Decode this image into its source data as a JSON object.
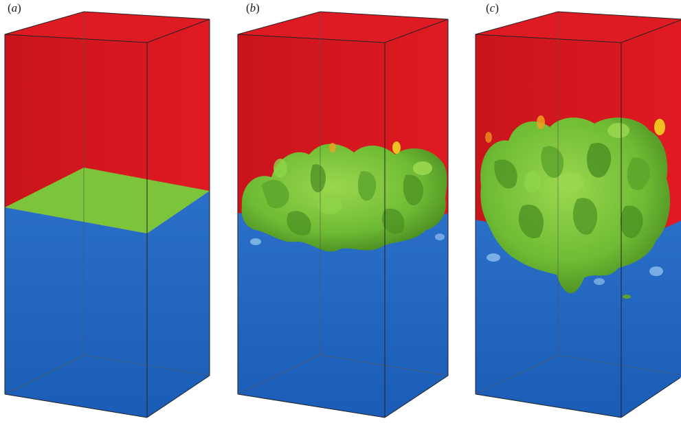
{
  "panels": [
    {
      "label": "a",
      "stage": "initial-flat-interface"
    },
    {
      "label": "b",
      "stage": "early-turbulent-mixing"
    },
    {
      "label": "c",
      "stage": "late-turbulent-mixing"
    }
  ],
  "colors": {
    "upper_fluid": "#d8161e",
    "upper_fluid_side": "#c8121a",
    "lower_fluid": "#1f64c0",
    "lower_fluid_side": "#1a58ad",
    "interface": "#7cc43a",
    "interface_dark": "#4c8e22",
    "edge": "#222222"
  }
}
